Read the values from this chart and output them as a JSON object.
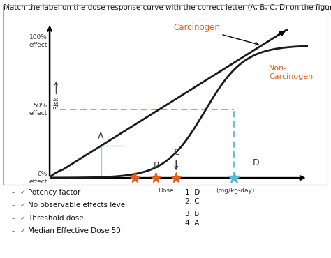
{
  "title": "Match the label on the dose response curve with the correct letter (A, B, C, D) on the figure.",
  "title_fontsize": 7.5,
  "carcinogen_label": "Carcinogen",
  "non_carcinogen_label": "Non-\nCarcinogen",
  "label_color_orange": "#E06020",
  "curve_color": "#1a1a1a",
  "dashed_color": "#5BB8D4",
  "star_orange": "#E06020",
  "star_blue": "#5BB8D4",
  "bracket_color": "#87CEEB",
  "matching_items": [
    "Potency factor",
    "No observable effects level",
    "Threshold dose",
    "Median Effective Dose 50"
  ],
  "matching_answers": [
    "1. D",
    "2. C",
    "3. B",
    "4. A"
  ],
  "background_color": "#ffffff"
}
